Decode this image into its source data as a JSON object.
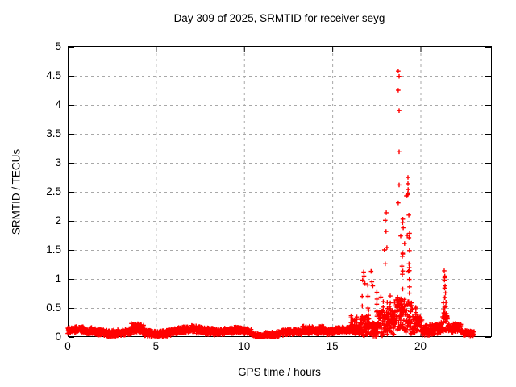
{
  "background": "#ffffff",
  "chart_data": {
    "type": "scatter",
    "title": "Day 309 of 2025, SRMTID for receiver seyg",
    "xlabel": "GPS time / hours",
    "ylabel": "SRMTID / TECUs",
    "xlim": [
      0,
      24
    ],
    "ylim": [
      0,
      5
    ],
    "x_ticks": [
      0,
      5,
      10,
      15,
      20
    ],
    "x_tick_labels": [
      "0",
      "5",
      "10",
      "15",
      "20"
    ],
    "y_ticks": [
      0,
      0.5,
      1,
      1.5,
      2,
      2.5,
      3,
      3.5,
      4,
      4.5,
      5
    ],
    "y_tick_labels": [
      "0",
      "0.5",
      "1",
      "1.5",
      "2",
      "2.5",
      "3",
      "3.5",
      "4",
      "4.5",
      "5"
    ],
    "grid": true,
    "grid_color": "#a8a8a8",
    "border_color": "#000000",
    "marker": "plus",
    "marker_color": "#ff0000",
    "series_name": "SRMTID",
    "data_start_hour": 0.0,
    "data_end_hour": 23.05,
    "samples_per_hour": 100,
    "rng_seed": 309,
    "baseline_segments": [
      {
        "x0": 0.0,
        "x1": 1.0,
        "mean": 0.09,
        "spread": 0.1,
        "burst": 0
      },
      {
        "x0": 1.0,
        "x1": 1.3,
        "mean": 0.06,
        "spread": 0.08,
        "burst": 0
      },
      {
        "x0": 1.3,
        "x1": 3.6,
        "mean": 0.09,
        "spread": 0.11,
        "burst": 0
      },
      {
        "x0": 3.6,
        "x1": 4.3,
        "mean": 0.15,
        "spread": 0.16,
        "burst": 0
      },
      {
        "x0": 4.3,
        "x1": 7.0,
        "mean": 0.09,
        "spread": 0.11,
        "burst": 0
      },
      {
        "x0": 7.0,
        "x1": 8.3,
        "mean": 0.1,
        "spread": 0.13,
        "burst": 0
      },
      {
        "x0": 8.3,
        "x1": 10.4,
        "mean": 0.09,
        "spread": 0.11,
        "burst": 0
      },
      {
        "x0": 10.4,
        "x1": 11.1,
        "mean": 0.05,
        "spread": 0.08,
        "burst": 0
      },
      {
        "x0": 11.1,
        "x1": 13.3,
        "mean": 0.08,
        "spread": 0.1,
        "burst": 0
      },
      {
        "x0": 13.3,
        "x1": 14.6,
        "mean": 0.13,
        "spread": 0.14,
        "burst": 0
      },
      {
        "x0": 14.6,
        "x1": 16.0,
        "mean": 0.08,
        "spread": 0.1,
        "burst": 0
      },
      {
        "x0": 16.0,
        "x1": 16.6,
        "mean": 0.1,
        "spread": 0.14,
        "burst": 0.3
      },
      {
        "x0": 16.6,
        "x1": 17.1,
        "mean": 0.2,
        "spread": 0.35,
        "burst": 0.85
      },
      {
        "x0": 17.1,
        "x1": 17.5,
        "mean": 0.15,
        "spread": 0.25,
        "burst": 0.5
      },
      {
        "x0": 17.5,
        "x1": 18.1,
        "mean": 0.25,
        "spread": 0.45,
        "burst": 1.3
      },
      {
        "x0": 18.1,
        "x1": 18.5,
        "mean": 0.28,
        "spread": 0.5,
        "burst": 1.0
      },
      {
        "x0": 18.5,
        "x1": 19.1,
        "mean": 0.4,
        "spread": 0.6,
        "burst": 1.6
      },
      {
        "x0": 19.1,
        "x1": 19.55,
        "mean": 0.35,
        "spread": 0.55,
        "burst": 1.8
      },
      {
        "x0": 19.55,
        "x1": 20.1,
        "mean": 0.25,
        "spread": 0.3,
        "burst": 0.3
      },
      {
        "x0": 20.1,
        "x1": 21.25,
        "mean": 0.15,
        "spread": 0.18,
        "burst": 0.15
      },
      {
        "x0": 21.25,
        "x1": 21.55,
        "mean": 0.25,
        "spread": 0.35,
        "burst": 0.8
      },
      {
        "x0": 21.55,
        "x1": 22.3,
        "mean": 0.12,
        "spread": 0.15,
        "burst": 0.1
      },
      {
        "x0": 22.3,
        "x1": 23.05,
        "mean": 0.06,
        "spread": 0.09,
        "burst": 0
      }
    ],
    "spike_points": [
      [
        18.74,
        4.58
      ],
      [
        18.79,
        4.49
      ],
      [
        18.74,
        4.25
      ],
      [
        18.79,
        3.9
      ],
      [
        18.79,
        3.19
      ],
      [
        19.29,
        2.75
      ],
      [
        19.29,
        2.64
      ],
      [
        18.79,
        2.62
      ],
      [
        19.3,
        2.54
      ],
      [
        19.28,
        2.47
      ],
      [
        19.27,
        2.45
      ],
      [
        19.2,
        2.43
      ],
      [
        18.74,
        2.31
      ],
      [
        18.06,
        2.14
      ],
      [
        19.34,
        2.1
      ],
      [
        19.0,
        2.03
      ],
      [
        18.0,
        2.01
      ],
      [
        18.99,
        1.97
      ],
      [
        19.02,
        1.88
      ],
      [
        18.05,
        1.82
      ],
      [
        19.25,
        1.75
      ],
      [
        18.88,
        1.74
      ],
      [
        19.35,
        1.71
      ],
      [
        19.1,
        1.61
      ],
      [
        18.1,
        1.54
      ],
      [
        17.95,
        1.5
      ],
      [
        19.0,
        1.43
      ],
      [
        18.97,
        1.39
      ],
      [
        18.0,
        1.26
      ],
      [
        19.35,
        1.26
      ],
      [
        18.95,
        1.22
      ],
      [
        17.2,
        1.13
      ],
      [
        19.32,
        1.13
      ],
      [
        18.97,
        1.08
      ],
      [
        16.78,
        1.12
      ],
      [
        16.8,
        1.05
      ],
      [
        16.72,
        0.98
      ],
      [
        16.85,
        0.92
      ],
      [
        17.25,
        0.95
      ],
      [
        17.3,
        0.88
      ],
      [
        21.35,
        1.14
      ],
      [
        21.38,
        1.05
      ],
      [
        21.37,
        1.02
      ],
      [
        21.36,
        0.98
      ],
      [
        21.4,
        0.88
      ],
      [
        21.42,
        0.76
      ],
      [
        21.39,
        0.68
      ],
      [
        21.45,
        0.6
      ],
      [
        10.7,
        0.01
      ],
      [
        10.71,
        0.0
      ],
      [
        10.72,
        0.02
      ],
      [
        10.73,
        0.03
      ],
      [
        10.74,
        0.01
      ],
      [
        10.75,
        0.02
      ]
    ]
  }
}
